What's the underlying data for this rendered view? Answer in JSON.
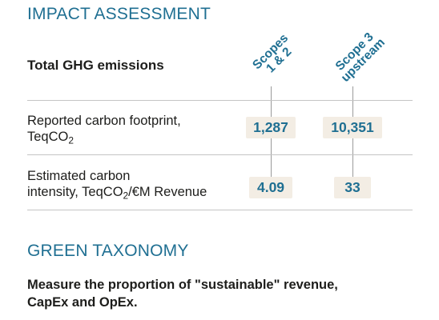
{
  "impact_assessment": {
    "title": "IMPACT ASSESSMENT",
    "table_title": "Total GHG emissions",
    "columns": [
      "Scopes\n1 & 2",
      "Scope 3\nupstream"
    ],
    "rows": [
      {
        "label_pre": "Reported carbon footprint,\nTeqCO",
        "label_sub": "2",
        "label_post": "",
        "values": [
          "1,287",
          "10,351"
        ]
      },
      {
        "label_pre": "Estimated carbon\nintensity, TeqCO",
        "label_sub": "2",
        "label_post": "/€M Revenue",
        "values": [
          "4.09",
          "33"
        ]
      }
    ]
  },
  "green_taxonomy": {
    "title": "GREEN TAXONOMY",
    "description": "Measure the proportion of \"sustainable\" revenue,\nCapEx and OpEx."
  },
  "colors": {
    "accent": "#1f6f92",
    "value_background": "#f3ede4",
    "text": "#1d1d1b",
    "rule": "#c4c4c4"
  }
}
